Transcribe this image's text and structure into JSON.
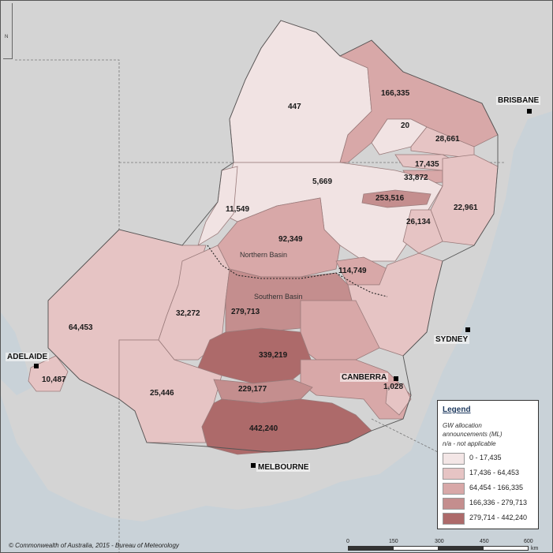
{
  "cities": {
    "brisbane": "BRISBANE",
    "sydney": "SYDNEY",
    "canberra": "CANBERRA",
    "adelaide": "ADELAIDE",
    "melbourne": "MELBOURNE"
  },
  "basins": {
    "northern": "Northern Basin",
    "southern": "Southern Basin"
  },
  "region_values": {
    "r447": "447",
    "r166335": "166,335",
    "r20": "20",
    "r28661": "28,661",
    "r17435": "17,435",
    "r33872": "33,872",
    "r5669": "5,669",
    "r253516": "253,516",
    "r22961": "22,961",
    "r11549": "11,549",
    "r26134": "26,134",
    "r92349": "92,349",
    "r114749": "114,749",
    "r64453": "64,453",
    "r32272": "32,272",
    "r279713": "279,713",
    "r339219": "339,219",
    "r10487": "10,487",
    "r1028": "1,028",
    "r25446": "25,446",
    "r229177": "229,177",
    "r442240": "442,240"
  },
  "legend": {
    "title": "Legend",
    "subtitle_1": "GW allocation",
    "subtitle_2": "announcements (ML)",
    "subtitle_3": "n/a - not applicable",
    "classes": [
      {
        "label": "0 - 17,435",
        "color": "#f3e6e6"
      },
      {
        "label": "17,436 - 64,453",
        "color": "#e6c4c4"
      },
      {
        "label": "64,454 - 166,335",
        "color": "#d8a8a8"
      },
      {
        "label": "166,336 - 279,713",
        "color": "#c48e8e"
      },
      {
        "label": "279,714 - 442,240",
        "color": "#ad6a6a"
      }
    ]
  },
  "copyright": "© Commonwealth of Australia, 2015 - Bureau of Meteorology",
  "scale": {
    "ticks": [
      "0",
      "150",
      "300",
      "450",
      "600"
    ],
    "unit": "km"
  },
  "north_label": "N"
}
